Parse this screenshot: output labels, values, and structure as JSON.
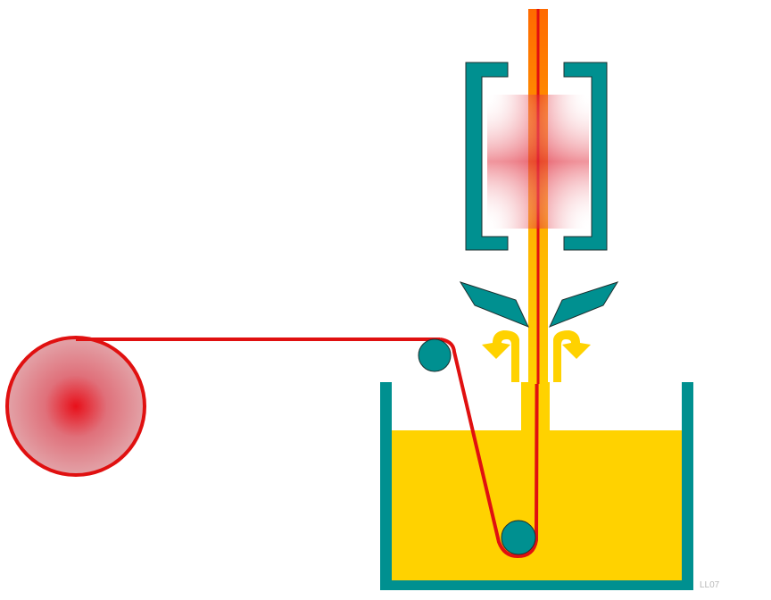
{
  "diagram": {
    "watermark": "LL07",
    "colors": {
      "fiber": "#e01010",
      "coating_liquid": "#ffd200",
      "tank_and_rollers": "#009090",
      "furnace_glow": "#e03040",
      "hot_fiber": "#ff7a00",
      "background": "#ffffff"
    },
    "icons": {
      "supply_spool": "spool-icon",
      "top_roller": "roller-icon",
      "bottom_roller": "roller-icon",
      "flow_arrows": "curved-arrow-icon"
    }
  }
}
